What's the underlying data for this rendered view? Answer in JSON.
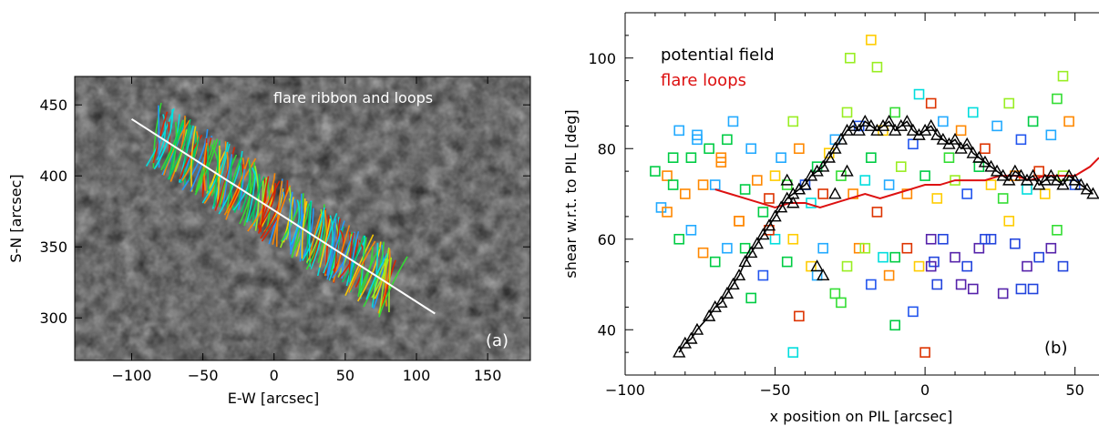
{
  "chart_data": [
    {
      "panel": "(a)",
      "type": "image-overlay",
      "title": "",
      "annotation": "flare ribbon and loops",
      "xlabel": "E-W [arcsec]",
      "ylabel": "S-N [arcsec]",
      "xlim": [
        -140,
        180
      ],
      "ylim": [
        270,
        470
      ],
      "xticks": [
        -100,
        -50,
        0,
        50,
        100,
        150
      ],
      "yticks": [
        300,
        350,
        400,
        450
      ],
      "pil_line": [
        [
          -100,
          440
        ],
        [
          113,
          303
        ]
      ],
      "loop_colors": [
        "#00cc66",
        "#33dd33",
        "#00e0e0",
        "#2299ff",
        "#ffcc00",
        "#ff8800",
        "#dd2200",
        "#99ee22"
      ],
      "background_color": "#1a1a1a"
    },
    {
      "panel": "(b)",
      "type": "scatter",
      "title": "",
      "xlabel": "x position on PIL [arcsec]",
      "ylabel": "shear w.r.t. to PIL [deg]",
      "xlim": [
        -100,
        58
      ],
      "ylim": [
        30,
        110
      ],
      "xticks": [
        -100,
        -50,
        0,
        50
      ],
      "yticks": [
        40,
        60,
        80,
        100
      ],
      "grid": false,
      "legend_position": "top-left",
      "series": [
        {
          "name": "potential field",
          "marker": "triangle",
          "color": "#000000",
          "x": [
            -82,
            -80,
            -78,
            -76,
            -72,
            -70,
            -68,
            -66,
            -64,
            -62,
            -60,
            -58,
            -56,
            -54,
            -52,
            -50,
            -48,
            -46,
            -44,
            -42,
            -40,
            -38,
            -36,
            -34,
            -32,
            -30,
            -28,
            -26,
            -24,
            -22,
            -20,
            -18,
            -16,
            -14,
            -12,
            -10,
            -8,
            -6,
            -4,
            -2,
            0,
            2,
            4,
            6,
            8,
            10,
            12,
            14,
            16,
            18,
            20,
            22,
            24,
            26,
            28,
            30,
            32,
            34,
            36,
            38,
            40,
            42,
            44,
            46,
            48,
            50,
            52,
            54,
            56,
            -36,
            -34,
            -46,
            -42,
            -30,
            -26,
            -44
          ],
          "y": [
            35,
            37,
            38,
            40,
            43,
            45,
            46,
            48,
            50,
            52,
            55,
            57,
            59,
            61,
            63,
            65,
            67,
            69,
            70,
            71,
            72,
            74,
            75,
            76,
            78,
            80,
            82,
            84,
            85,
            84,
            86,
            85,
            84,
            85,
            86,
            84,
            85,
            86,
            84,
            83,
            84,
            85,
            83,
            82,
            81,
            82,
            80,
            81,
            79,
            78,
            77,
            76,
            75,
            74,
            73,
            75,
            74,
            73,
            74,
            72,
            73,
            74,
            73,
            72,
            74,
            73,
            72,
            71,
            70,
            54,
            52,
            73,
            71,
            70,
            75,
            68
          ]
        },
        {
          "name": "flare loops",
          "marker": "line",
          "color": "#dd1111",
          "x": [
            -70,
            -65,
            -60,
            -55,
            -50,
            -45,
            -40,
            -35,
            -30,
            -25,
            -20,
            -15,
            -10,
            -5,
            0,
            5,
            10,
            15,
            20,
            25,
            30,
            35,
            40,
            45,
            50,
            55,
            58
          ],
          "y": [
            71,
            70,
            69,
            68,
            67,
            68,
            68,
            67,
            68,
            69,
            70,
            69,
            70,
            71,
            72,
            72,
            73,
            73,
            73,
            74,
            74,
            73,
            74,
            74,
            74,
            76,
            78
          ]
        },
        {
          "name": "",
          "marker": "square",
          "x": [
            -90,
            -88,
            -86,
            -84,
            -82,
            -80,
            -78,
            -76,
            -74,
            -72,
            -70,
            -68,
            -66,
            -64,
            -62,
            -60,
            -58,
            -56,
            -54,
            -52,
            -50,
            -48,
            -46,
            -44,
            -42,
            -40,
            -38,
            -36,
            -34,
            -32,
            -30,
            -28,
            -26,
            -24,
            -22,
            -20,
            -18,
            -16,
            -14,
            -12,
            -10,
            -8,
            -6,
            -4,
            -2,
            0,
            2,
            4,
            6,
            8,
            10,
            12,
            14,
            16,
            18,
            20,
            22,
            24,
            26,
            28,
            30,
            32,
            34,
            36,
            38,
            40,
            42,
            44,
            46,
            48,
            50,
            -86,
            -82,
            -78,
            -74,
            -70,
            -66,
            -62,
            -58,
            -54,
            -50,
            -46,
            -42,
            -38,
            -34,
            -30,
            -26,
            -22,
            -18,
            -14,
            -10,
            -6,
            -2,
            2,
            6,
            10,
            14,
            18,
            22,
            26,
            30,
            34,
            38,
            42,
            46,
            -84,
            -76,
            -68,
            -60,
            -52,
            -44,
            -36,
            -28,
            -20,
            -12,
            -4,
            4,
            12,
            20,
            28,
            36,
            44,
            -25,
            -18,
            -16,
            -44,
            -10,
            0,
            3,
            16,
            32,
            2,
            46
          ],
          "y": [
            75,
            67,
            74,
            72,
            84,
            70,
            78,
            83,
            72,
            80,
            72,
            77,
            82,
            86,
            64,
            71,
            80,
            73,
            66,
            69,
            74,
            78,
            72,
            86,
            80,
            72,
            68,
            76,
            70,
            79,
            82,
            74,
            88,
            70,
            85,
            73,
            78,
            66,
            84,
            72,
            88,
            76,
            70,
            81,
            92,
            74,
            90,
            69,
            86,
            78,
            73,
            84,
            70,
            88,
            76,
            80,
            72,
            85,
            69,
            90,
            74,
            82,
            71,
            86,
            75,
            70,
            83,
            91,
            74,
            86,
            72,
            66,
            60,
            62,
            57,
            55,
            58,
            64,
            47,
            52,
            60,
            55,
            43,
            54,
            58,
            48,
            54,
            58,
            50,
            56,
            56,
            58,
            54,
            60,
            60,
            56,
            54,
            58,
            60,
            48,
            59,
            54,
            56,
            58,
            54,
            78,
            82,
            78,
            58,
            62,
            60,
            52,
            46,
            58,
            52,
            44,
            50,
            50,
            60,
            64,
            49,
            62,
            100,
            104,
            98,
            35,
            41,
            35,
            55,
            49,
            49,
            54,
            96
          ]
        }
      ]
    }
  ],
  "legend": {
    "entries": [
      "potential field",
      "flare loops"
    ]
  },
  "panel_labels": [
    "(a)",
    "(b)"
  ]
}
